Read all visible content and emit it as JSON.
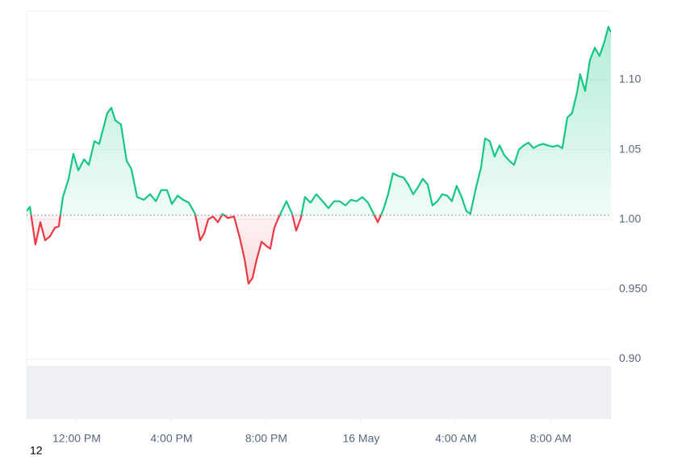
{
  "chart_data": {
    "type": "line",
    "corner_label": "12",
    "baseline": 1.003,
    "up_color": "#16c784",
    "down_color": "#ea3943",
    "xlim": [
      9.89,
      34.54
    ],
    "ylim": [
      0.857,
      1.149
    ],
    "grid": true,
    "xticks": [
      {
        "value": 12,
        "label": "12:00 PM"
      },
      {
        "value": 16,
        "label": "4:00 PM"
      },
      {
        "value": 20,
        "label": "8:00 PM"
      },
      {
        "value": 24,
        "label": "16 May"
      },
      {
        "value": 28,
        "label": "4:00 AM"
      },
      {
        "value": 32,
        "label": "8:00 AM"
      }
    ],
    "yticks": [
      {
        "value": 0.9,
        "label": "0.90"
      },
      {
        "value": 0.95,
        "label": "0.950"
      },
      {
        "value": 1.0,
        "label": "1.00"
      },
      1.05,
      {
        "value": 1.1,
        "label": "1.10"
      }
    ],
    "series": [
      {
        "x": [
          9.89,
          10.03,
          10.26,
          10.47,
          10.67,
          10.88,
          11.08,
          11.25,
          11.42,
          11.66,
          11.86,
          12.07,
          12.31,
          12.51,
          12.75,
          12.95,
          13.12,
          13.29,
          13.46,
          13.63,
          13.87,
          14.11,
          14.31,
          14.55,
          14.83,
          15.1,
          15.34,
          15.57,
          15.81,
          16.02,
          16.26,
          16.49,
          16.73,
          17.0,
          17.21,
          17.38,
          17.55,
          17.75,
          17.96,
          18.16,
          18.37,
          18.64,
          18.88,
          19.08,
          19.25,
          19.42,
          19.59,
          19.8,
          20.0,
          20.17,
          20.34,
          20.51,
          20.68,
          20.85,
          21.09,
          21.26,
          21.46,
          21.63,
          21.87,
          22.11,
          22.38,
          22.62,
          22.86,
          23.1,
          23.34,
          23.57,
          23.81,
          24.05,
          24.29,
          24.53,
          24.7,
          24.94,
          25.14,
          25.34,
          25.58,
          25.79,
          25.99,
          26.2,
          26.4,
          26.6,
          26.81,
          27.01,
          27.22,
          27.42,
          27.63,
          27.83,
          28.03,
          28.24,
          28.44,
          28.61,
          28.85,
          29.06,
          29.23,
          29.43,
          29.63,
          29.84,
          30.04,
          30.25,
          30.45,
          30.66,
          30.86,
          31.06,
          31.27,
          31.47,
          31.68,
          31.88,
          32.09,
          32.29,
          32.49,
          32.7,
          32.9,
          33.11,
          33.24,
          33.45,
          33.65,
          33.86,
          34.06,
          34.26,
          34.43,
          34.54
        ],
        "values": [
          1.006,
          1.009,
          0.982,
          0.998,
          0.985,
          0.988,
          0.994,
          0.995,
          1.016,
          1.029,
          1.047,
          1.035,
          1.043,
          1.039,
          1.056,
          1.054,
          1.065,
          1.076,
          1.08,
          1.071,
          1.068,
          1.042,
          1.036,
          1.016,
          1.014,
          1.018,
          1.013,
          1.021,
          1.021,
          1.011,
          1.017,
          1.014,
          1.012,
          1.004,
          0.985,
          0.99,
          1.0,
          1.002,
          0.998,
          1.004,
          1.001,
          1.002,
          0.987,
          0.972,
          0.954,
          0.958,
          0.971,
          0.984,
          0.981,
          0.979,
          0.994,
          1.001,
          1.007,
          1.013,
          1.004,
          0.992,
          1.001,
          1.016,
          1.012,
          1.018,
          1.013,
          1.008,
          1.013,
          1.013,
          1.01,
          1.014,
          1.013,
          1.016,
          1.012,
          1.004,
          0.998,
          1.007,
          1.018,
          1.033,
          1.031,
          1.03,
          1.025,
          1.018,
          1.023,
          1.029,
          1.025,
          1.01,
          1.013,
          1.018,
          1.017,
          1.013,
          1.024,
          1.016,
          1.006,
          1.004,
          1.023,
          1.037,
          1.058,
          1.056,
          1.045,
          1.053,
          1.046,
          1.042,
          1.039,
          1.05,
          1.053,
          1.055,
          1.051,
          1.053,
          1.054,
          1.053,
          1.052,
          1.053,
          1.051,
          1.073,
          1.076,
          1.091,
          1.104,
          1.092,
          1.114,
          1.123,
          1.117,
          1.127,
          1.138,
          1.134
        ]
      }
    ]
  }
}
